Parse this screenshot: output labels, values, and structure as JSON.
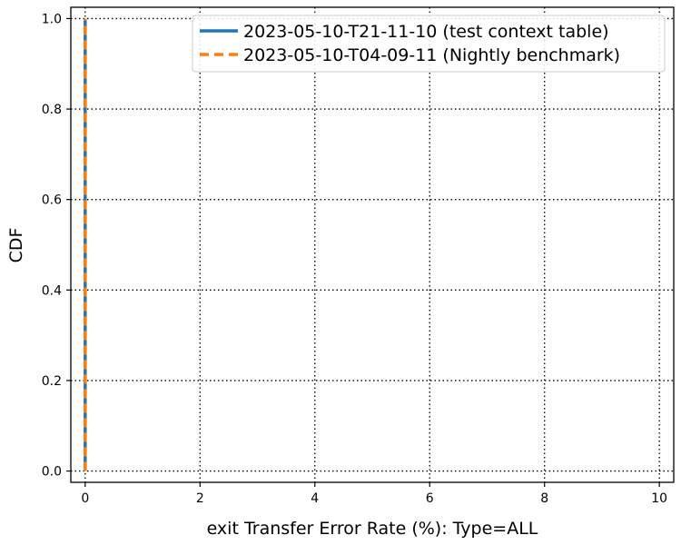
{
  "chart_data": {
    "type": "line",
    "title": "",
    "xlabel": "exit Transfer Error Rate (%): Type=ALL",
    "ylabel": "CDF",
    "xlim": [
      -0.25,
      10.25
    ],
    "ylim": [
      -0.025,
      1.025
    ],
    "x_ticks": [
      0,
      2,
      4,
      6,
      8,
      10
    ],
    "y_ticks": [
      0.0,
      0.2,
      0.4,
      0.6,
      0.8,
      1.0
    ],
    "x_tick_labels": [
      "0",
      "2",
      "4",
      "6",
      "8",
      "10"
    ],
    "y_tick_labels": [
      "0.0",
      "0.2",
      "0.4",
      "0.6",
      "0.8",
      "1.0"
    ],
    "grid": true,
    "legend_position": "top-right",
    "series": [
      {
        "name": "2023-05-10-T21-11-10 (test context table)",
        "color": "#1f77b4",
        "linestyle": "solid",
        "x": [
          0,
          0
        ],
        "y": [
          0.0,
          1.0
        ]
      },
      {
        "name": "2023-05-10-T04-09-11 (Nightly benchmark)",
        "color": "#ff7f0e",
        "linestyle": "dashed",
        "x": [
          0,
          0
        ],
        "y": [
          0.0,
          1.0
        ]
      }
    ]
  }
}
